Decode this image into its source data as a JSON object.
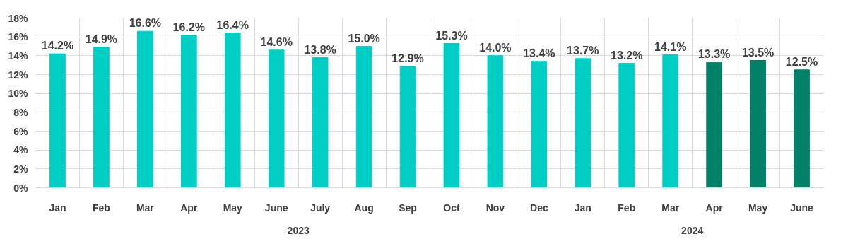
{
  "chart_data": {
    "type": "bar",
    "categories": [
      "Jan",
      "Feb",
      "Mar",
      "Apr",
      "May",
      "June",
      "July",
      "Aug",
      "Sep",
      "Oct",
      "Nov",
      "Dec",
      "Jan",
      "Feb",
      "Mar",
      "Apr",
      "May",
      "June"
    ],
    "values": [
      14.2,
      14.9,
      16.6,
      16.2,
      16.4,
      14.6,
      13.8,
      15.0,
      12.9,
      15.3,
      14.0,
      13.4,
      13.7,
      13.2,
      14.1,
      13.3,
      13.5,
      12.5
    ],
    "colors": [
      "#00cec4",
      "#00cec4",
      "#00cec4",
      "#00cec4",
      "#00cec4",
      "#00cec4",
      "#00cec4",
      "#00cec4",
      "#00cec4",
      "#00cec4",
      "#00cec4",
      "#00cec4",
      "#00cec4",
      "#00cec4",
      "#00cec4",
      "#008066",
      "#008066",
      "#008066"
    ],
    "value_labels": [
      "14.2%",
      "14.9%",
      "16.6%",
      "16.2%",
      "16.4%",
      "14.6%",
      "13.8%",
      "15.0%",
      "12.9%",
      "15.3%",
      "14.0%",
      "13.4%",
      "13.7%",
      "13.2%",
      "14.1%",
      "13.3%",
      "13.5%",
      "12.5%"
    ],
    "annotations": [
      "2023",
      "2024"
    ],
    "ylim": [
      0,
      18
    ],
    "yticks": [
      {
        "value": 0,
        "label": "0%"
      },
      {
        "value": 2,
        "label": "2%"
      },
      {
        "value": 4,
        "label": "4%"
      },
      {
        "value": 6,
        "label": "6%"
      },
      {
        "value": 8,
        "label": "8%"
      },
      {
        "value": 10,
        "label": "10%"
      },
      {
        "value": 12,
        "label": "12%"
      },
      {
        "value": 14,
        "label": "14%"
      },
      {
        "value": 16,
        "label": "16%"
      },
      {
        "value": 18,
        "label": "18%"
      }
    ],
    "grid": true
  }
}
